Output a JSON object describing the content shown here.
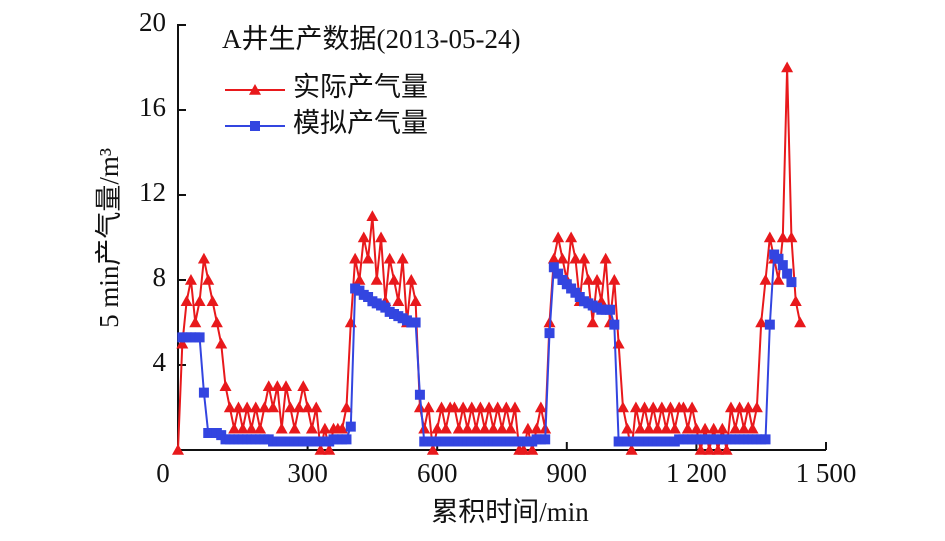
{
  "chart_data": {
    "type": "line",
    "title": "A井生产数据(2013-05-24)",
    "x_label": "累积时间/min",
    "y_label": "5 min产气量/m³",
    "xlim": [
      0,
      1500
    ],
    "xticks": [
      0,
      300,
      600,
      900,
      {
        "value": 1200,
        "label": "1 200"
      },
      {
        "value": 1500,
        "label": "1 500"
      }
    ],
    "ylim": [
      0,
      20
    ],
    "yticks": [
      4,
      8,
      12,
      16,
      20
    ],
    "x": [
      0,
      10,
      20,
      30,
      40,
      50,
      60,
      70,
      80,
      90,
      100,
      110,
      120,
      130,
      140,
      150,
      160,
      170,
      180,
      190,
      200,
      210,
      220,
      230,
      240,
      250,
      260,
      270,
      280,
      290,
      300,
      310,
      320,
      330,
      340,
      350,
      360,
      370,
      380,
      390,
      400,
      410,
      420,
      430,
      440,
      450,
      460,
      470,
      480,
      490,
      500,
      510,
      520,
      530,
      540,
      550,
      560,
      570,
      580,
      590,
      600,
      610,
      620,
      630,
      640,
      650,
      660,
      670,
      680,
      690,
      700,
      710,
      720,
      730,
      740,
      750,
      760,
      770,
      780,
      790,
      800,
      810,
      820,
      830,
      840,
      850,
      860,
      870,
      880,
      890,
      900,
      910,
      920,
      930,
      940,
      950,
      960,
      970,
      980,
      990,
      1000,
      1010,
      1020,
      1030,
      1040,
      1050,
      1060,
      1070,
      1080,
      1090,
      1100,
      1110,
      1120,
      1130,
      1140,
      1150,
      1160,
      1170,
      1180,
      1190,
      1200,
      1210,
      1220,
      1230,
      1240,
      1250,
      1260,
      1270,
      1280,
      1290,
      1300,
      1310,
      1320,
      1330,
      1340,
      1350,
      1360,
      1370,
      1380,
      1390,
      1400,
      1410,
      1420,
      1430,
      1440
    ],
    "series": [
      {
        "name": "实际产气量",
        "color": "#e8191c",
        "marker": "triangle",
        "values": [
          0,
          5,
          7,
          8,
          6,
          7,
          9,
          8,
          7,
          6,
          5,
          3,
          2,
          1,
          2,
          1,
          2,
          1,
          2,
          1,
          2,
          3,
          2,
          3,
          1,
          3,
          2,
          1,
          2,
          3,
          2,
          1,
          2,
          0,
          1,
          0,
          1,
          1,
          1,
          2,
          6,
          9,
          8,
          10,
          9,
          11,
          8,
          10,
          7,
          9,
          8,
          7,
          9,
          6,
          8,
          7,
          2,
          1,
          2,
          0,
          1,
          2,
          1,
          2,
          2,
          1,
          2,
          1,
          2,
          1,
          2,
          1,
          2,
          1,
          2,
          1,
          2,
          1,
          2,
          0,
          0,
          1,
          0,
          1,
          2,
          1,
          6,
          9,
          10,
          9,
          8,
          10,
          9,
          7,
          9,
          8,
          6,
          8,
          7,
          9,
          6,
          8,
          5,
          2,
          1,
          0,
          2,
          1,
          2,
          1,
          2,
          1,
          2,
          1,
          2,
          1,
          2,
          2,
          1,
          2,
          1,
          0,
          1,
          0,
          1,
          0,
          1,
          0,
          2,
          1,
          2,
          1,
          2,
          1,
          2,
          6,
          8,
          10,
          9,
          8,
          10,
          18,
          10,
          7,
          6
        ]
      },
      {
        "name": "模拟产气量",
        "color": "#3345e0",
        "marker": "square",
        "values": [
          null,
          5.3,
          5.3,
          5.3,
          5.3,
          5.3,
          2.7,
          0.8,
          0.8,
          0.8,
          0.7,
          0.5,
          0.5,
          0.5,
          0.5,
          0.5,
          0.5,
          0.5,
          0.5,
          0.5,
          0.5,
          0.5,
          0.4,
          0.4,
          0.4,
          0.4,
          0.4,
          0.4,
          0.4,
          0.4,
          0.4,
          0.4,
          0.4,
          0.4,
          0.4,
          0.4,
          0.5,
          0.5,
          0.5,
          0.5,
          1.1,
          7.6,
          7.5,
          7.3,
          7.2,
          7.0,
          6.9,
          6.8,
          6.7,
          6.5,
          6.4,
          6.3,
          6.2,
          6.1,
          6.0,
          6.0,
          2.6,
          0.4,
          0.4,
          0.4,
          0.4,
          0.4,
          0.4,
          0.4,
          0.4,
          0.4,
          0.4,
          0.4,
          0.4,
          0.4,
          0.4,
          0.4,
          0.4,
          0.4,
          0.4,
          0.4,
          0.4,
          0.4,
          0.4,
          0.4,
          0.4,
          0.4,
          0.4,
          0.5,
          0.5,
          0.5,
          5.5,
          8.6,
          8.3,
          8.0,
          7.8,
          7.6,
          7.4,
          7.2,
          7.0,
          6.9,
          6.8,
          6.7,
          6.6,
          6.6,
          6.6,
          5.9,
          0.4,
          0.4,
          0.4,
          0.4,
          0.4,
          0.4,
          0.4,
          0.4,
          0.4,
          0.4,
          0.4,
          0.4,
          0.4,
          0.4,
          0.5,
          0.5,
          0.5,
          0.5,
          0.5,
          0.5,
          0.5,
          0.5,
          0.5,
          0.5,
          0.5,
          0.5,
          0.5,
          0.5,
          0.5,
          0.5,
          0.5,
          0.5,
          0.5,
          0.5,
          0.5,
          5.9,
          9.2,
          9.0,
          8.7,
          8.3,
          7.9,
          null,
          null
        ]
      }
    ]
  }
}
